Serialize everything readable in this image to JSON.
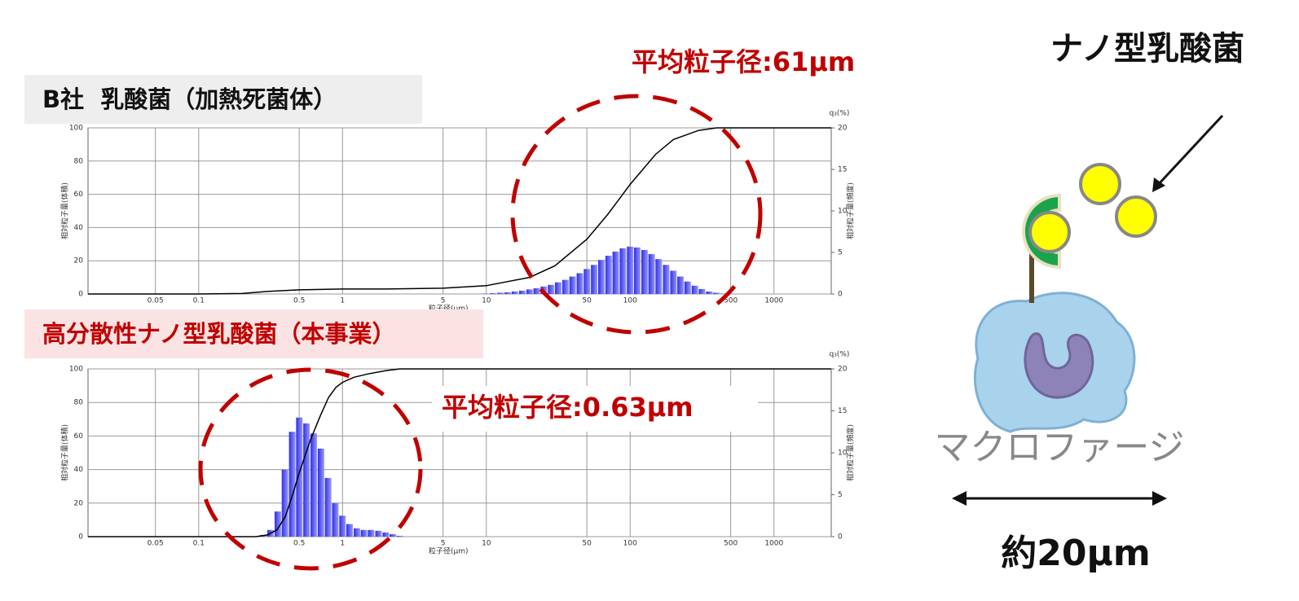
{
  "chart_data": [
    {
      "type": "combo",
      "title": "B社  乳酸菌（加熱死菌体）",
      "annotation": "平均粒子径:61μm",
      "xlabel": "粒子径(μm)",
      "ylabel": "相対粒子量(体積)",
      "y2label": "相対粒子量(頻度)",
      "y2unit": "q₃(%)",
      "xscale": "log",
      "xlim": [
        0.017,
        2500
      ],
      "xticks": [
        0.05,
        0.1,
        0.5,
        1,
        5,
        10,
        50,
        100,
        500,
        1000
      ],
      "ylim": [
        0,
        100
      ],
      "yticks": [
        0,
        20,
        40,
        60,
        80,
        100
      ],
      "y2lim": [
        0,
        20
      ],
      "y2ticks": [
        0,
        5,
        10,
        15,
        20
      ],
      "grid": true,
      "series": [
        {
          "type": "bar",
          "axis": "y2",
          "color": "#2f2fe8",
          "x": [
            10,
            11.2,
            12.6,
            14.1,
            15.8,
            17.8,
            20,
            22.4,
            25.1,
            28.2,
            31.6,
            35.5,
            39.8,
            44.7,
            50.1,
            56.2,
            63.1,
            70.8,
            79.4,
            89.1,
            100,
            112,
            126,
            141,
            158,
            178,
            200,
            224,
            251,
            282,
            316,
            355,
            398,
            447
          ],
          "values": [
            0.05,
            0.1,
            0.15,
            0.2,
            0.3,
            0.4,
            0.55,
            0.7,
            0.9,
            1.1,
            1.4,
            1.7,
            2.1,
            2.5,
            3.0,
            3.5,
            4.1,
            4.6,
            5.1,
            5.5,
            5.7,
            5.6,
            5.3,
            4.8,
            4.2,
            3.5,
            2.8,
            2.1,
            1.5,
            1.0,
            0.6,
            0.3,
            0.15,
            0.05
          ]
        },
        {
          "type": "line",
          "axis": "y",
          "color": "#000000",
          "x": [
            0.017,
            0.1,
            0.2,
            0.3,
            0.5,
            1,
            2,
            5,
            10,
            20,
            30,
            50,
            70,
            100,
            150,
            200,
            300,
            400,
            2500
          ],
          "values": [
            0,
            0,
            0.3,
            1.5,
            2.5,
            3,
            3,
            3.5,
            5,
            10,
            17,
            33,
            48,
            66,
            84,
            93,
            98.5,
            100,
            100
          ]
        }
      ]
    },
    {
      "type": "combo",
      "title": "高分散性ナノ型乳酸菌（本事業）",
      "annotation": "平均粒子径:0.63μm",
      "xlabel": "粒子径(μm)",
      "ylabel": "相対粒子量(体積)",
      "y2label": "相対粒子量(頻度)",
      "y2unit": "q₃(%)",
      "xscale": "log",
      "xlim": [
        0.017,
        2500
      ],
      "xticks": [
        0.05,
        0.1,
        0.5,
        1,
        5,
        10,
        50,
        100,
        500,
        1000
      ],
      "ylim": [
        0,
        100
      ],
      "yticks": [
        0,
        20,
        40,
        60,
        80,
        100
      ],
      "y2lim": [
        0,
        20
      ],
      "y2ticks": [
        0,
        5,
        10,
        15,
        20
      ],
      "grid": true,
      "series": [
        {
          "type": "bar",
          "axis": "y2",
          "color": "#2f2fe8",
          "x": [
            0.282,
            0.316,
            0.355,
            0.398,
            0.447,
            0.501,
            0.562,
            0.631,
            0.708,
            0.794,
            0.891,
            1.0,
            1.12,
            1.26,
            1.41,
            1.58,
            1.78,
            2.0,
            2.24,
            2.51
          ],
          "values": [
            0.2,
            0.8,
            3,
            8,
            12.5,
            14.2,
            13.5,
            12.3,
            10.5,
            7,
            4,
            2.5,
            1.5,
            1,
            0.8,
            0.8,
            0.7,
            0.5,
            0.3,
            0.1
          ]
        },
        {
          "type": "line",
          "axis": "y",
          "color": "#000000",
          "x": [
            0.017,
            0.25,
            0.3,
            0.35,
            0.4,
            0.45,
            0.5,
            0.6,
            0.7,
            0.8,
            0.9,
            1.0,
            1.2,
            1.5,
            2,
            2.5,
            2500
          ],
          "values": [
            0,
            0,
            1,
            4,
            12,
            25,
            38,
            58,
            72,
            83,
            89,
            92,
            95,
            97,
            99,
            100,
            100
          ]
        }
      ]
    }
  ],
  "diagram": {
    "title": "ナノ型乳酸菌",
    "cell_label": "マクロファージ",
    "size_label": "約20μm"
  }
}
